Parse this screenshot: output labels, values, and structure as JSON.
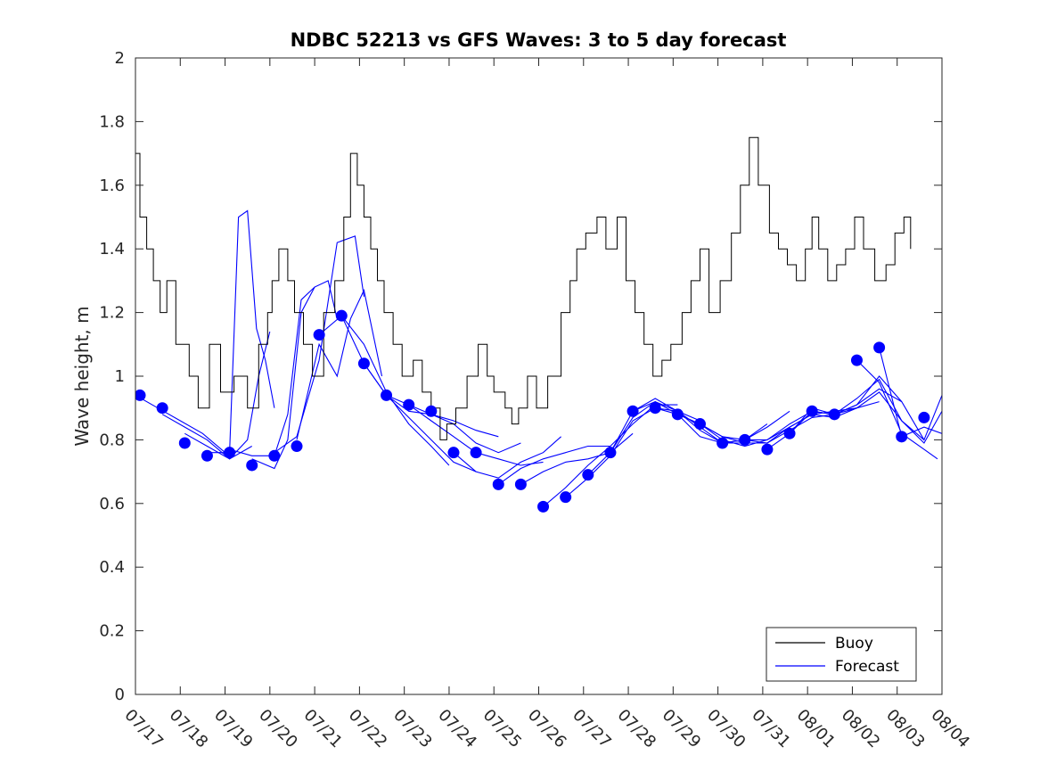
{
  "chart_data": {
    "type": "line",
    "title": "NDBC 52213 vs GFS Waves: 3 to 5 day forecast",
    "xlabel": "",
    "ylabel": "Wave height, m",
    "ylim": [
      0,
      2
    ],
    "yticks": [
      0,
      0.2,
      0.4,
      0.6,
      0.8,
      1,
      1.2,
      1.4,
      1.6,
      1.8,
      2
    ],
    "ytick_labels": [
      "0",
      "0.2",
      "0.4",
      "0.6",
      "0.8",
      "1",
      "1.2",
      "1.4",
      "1.6",
      "1.8",
      "2"
    ],
    "x_unit": "days since 07/17 00:00",
    "xlim": [
      0,
      18
    ],
    "xtick_labels": [
      "07/17",
      "07/18",
      "07/19",
      "07/20",
      "07/21",
      "07/22",
      "07/23",
      "07/24",
      "07/25",
      "07/26",
      "07/27",
      "07/28",
      "07/29",
      "07/30",
      "07/31",
      "08/01",
      "08/02",
      "08/03",
      "08/04"
    ],
    "grid": false,
    "legend": {
      "position": "bottom-right",
      "entries": [
        "Buoy",
        "Forecast"
      ]
    },
    "colors": {
      "buoy": "#000000",
      "forecast": "#0000ff",
      "axis": "#262626"
    },
    "series": [
      {
        "name": "Buoy",
        "step": true,
        "x": [
          0.0,
          0.1,
          0.25,
          0.4,
          0.55,
          0.7,
          0.9,
          1.2,
          1.4,
          1.65,
          1.9,
          2.2,
          2.5,
          2.75,
          2.95,
          3.05,
          3.2,
          3.4,
          3.55,
          3.75,
          3.95,
          4.2,
          4.45,
          4.65,
          4.8,
          4.95,
          5.1,
          5.25,
          5.4,
          5.55,
          5.75,
          5.95,
          6.2,
          6.4,
          6.6,
          6.8,
          6.95,
          7.15,
          7.4,
          7.65,
          7.85,
          8.0,
          8.25,
          8.4,
          8.55,
          8.75,
          8.95,
          9.2,
          9.5,
          9.7,
          9.85,
          10.05,
          10.3,
          10.5,
          10.75,
          10.95,
          11.15,
          11.35,
          11.55,
          11.75,
          11.95,
          12.2,
          12.4,
          12.6,
          12.8,
          13.05,
          13.3,
          13.5,
          13.7,
          13.9,
          14.15,
          14.35,
          14.55,
          14.75,
          14.95,
          15.1,
          15.25,
          15.45,
          15.65,
          15.85,
          16.05,
          16.25,
          16.5,
          16.75,
          16.95,
          17.15,
          17.3
        ],
        "y": [
          1.7,
          1.5,
          1.4,
          1.3,
          1.2,
          1.3,
          1.1,
          1.0,
          0.9,
          1.1,
          0.95,
          1.0,
          0.9,
          1.1,
          1.2,
          1.3,
          1.4,
          1.3,
          1.2,
          1.1,
          1.0,
          1.2,
          1.3,
          1.5,
          1.7,
          1.6,
          1.5,
          1.4,
          1.3,
          1.2,
          1.1,
          1.0,
          1.05,
          0.95,
          0.9,
          0.8,
          0.85,
          0.9,
          1.0,
          1.1,
          1.0,
          0.95,
          0.9,
          0.85,
          0.9,
          1.0,
          0.9,
          1.0,
          1.2,
          1.3,
          1.4,
          1.45,
          1.5,
          1.4,
          1.5,
          1.3,
          1.2,
          1.1,
          1.0,
          1.05,
          1.1,
          1.2,
          1.3,
          1.4,
          1.2,
          1.3,
          1.45,
          1.6,
          1.75,
          1.6,
          1.45,
          1.4,
          1.35,
          1.3,
          1.4,
          1.5,
          1.4,
          1.3,
          1.35,
          1.4,
          1.5,
          1.4,
          1.3,
          1.35,
          1.45,
          1.5,
          1.4
        ]
      },
      {
        "name": "Forecast",
        "forecast_runs": [
          {
            "x": [
              0.0,
              0.5,
              1.0,
              1.5,
              2.0
            ],
            "y": [
              0.94,
              0.9,
              0.86,
              0.82,
              0.76
            ]
          },
          {
            "x": [
              0.6,
              1.1,
              1.6,
              2.1,
              2.6
            ],
            "y": [
              0.88,
              0.84,
              0.8,
              0.74,
              0.78
            ]
          },
          {
            "x": [
              1.1,
              1.6,
              2.1,
              2.5,
              2.75,
              3.0
            ],
            "y": [
              0.82,
              0.78,
              0.74,
              0.8,
              1.0,
              1.14
            ]
          },
          {
            "x": [
              1.6,
              2.1,
              2.3,
              2.5,
              2.7,
              2.9,
              3.1
            ],
            "y": [
              0.76,
              0.76,
              1.5,
              1.52,
              1.15,
              1.05,
              0.9
            ]
          },
          {
            "x": [
              2.1,
              2.6,
              3.1,
              3.4,
              3.7,
              4.0
            ],
            "y": [
              0.77,
              0.75,
              0.75,
              0.88,
              1.24,
              1.28
            ]
          },
          {
            "x": [
              2.6,
              3.1,
              3.4,
              3.7,
              4.0,
              4.3,
              4.5
            ],
            "y": [
              0.74,
              0.71,
              0.8,
              1.2,
              1.28,
              1.3,
              1.18
            ]
          },
          {
            "x": [
              3.1,
              3.6,
              4.1,
              4.5,
              4.9,
              5.1
            ],
            "y": [
              0.76,
              0.81,
              1.05,
              1.42,
              1.44,
              1.25
            ]
          },
          {
            "x": [
              3.6,
              4.1,
              4.5,
              4.8,
              5.1,
              5.5
            ],
            "y": [
              0.8,
              1.1,
              1.0,
              1.18,
              1.27,
              1.0
            ]
          },
          {
            "x": [
              4.1,
              4.6,
              5.1,
              5.6,
              6.1,
              6.6,
              7.0
            ],
            "y": [
              1.13,
              1.19,
              1.1,
              0.95,
              0.85,
              0.78,
              0.72
            ]
          },
          {
            "x": [
              4.6,
              5.1,
              5.6,
              6.1,
              6.6,
              7.1,
              7.6
            ],
            "y": [
              1.19,
              1.04,
              0.94,
              0.87,
              0.8,
              0.73,
              0.7
            ]
          },
          {
            "x": [
              5.1,
              5.6,
              6.1,
              6.6,
              7.1,
              7.6,
              8.1
            ],
            "y": [
              1.04,
              0.94,
              0.89,
              0.88,
              0.86,
              0.83,
              0.81
            ]
          },
          {
            "x": [
              5.6,
              6.1,
              6.6,
              7.1,
              7.6,
              8.1,
              8.6
            ],
            "y": [
              0.94,
              0.91,
              0.88,
              0.85,
              0.79,
              0.76,
              0.79
            ]
          },
          {
            "x": [
              6.1,
              6.6,
              7.1,
              7.6,
              8.1,
              8.6,
              9.1
            ],
            "y": [
              0.91,
              0.86,
              0.81,
              0.76,
              0.74,
              0.72,
              0.73
            ]
          },
          {
            "x": [
              7.1,
              7.6,
              8.1,
              8.6,
              9.1,
              9.5
            ],
            "y": [
              0.76,
              0.7,
              0.68,
              0.73,
              0.76,
              0.81
            ]
          },
          {
            "x": [
              8.1,
              8.6,
              9.1,
              9.6,
              10.1,
              10.6
            ],
            "y": [
              0.66,
              0.71,
              0.74,
              0.76,
              0.78,
              0.78
            ]
          },
          {
            "x": [
              8.6,
              9.1,
              9.6,
              10.1,
              10.6,
              11.1
            ],
            "y": [
              0.66,
              0.7,
              0.73,
              0.74,
              0.76,
              0.82
            ]
          },
          {
            "x": [
              9.1,
              9.6,
              10.1,
              10.6,
              11.1,
              11.6,
              12.1
            ],
            "y": [
              0.59,
              0.65,
              0.72,
              0.78,
              0.85,
              0.91,
              0.91
            ]
          },
          {
            "x": [
              9.6,
              10.1,
              10.6,
              11.1,
              11.6,
              12.1,
              12.6
            ],
            "y": [
              0.62,
              0.68,
              0.75,
              0.86,
              0.9,
              0.89,
              0.86
            ]
          },
          {
            "x": [
              10.1,
              10.6,
              11.1,
              11.6,
              12.1,
              12.6,
              13.1
            ],
            "y": [
              0.69,
              0.76,
              0.87,
              0.92,
              0.88,
              0.81,
              0.79
            ]
          },
          {
            "x": [
              10.6,
              11.1,
              11.6,
              12.1,
              12.6,
              13.1,
              13.6
            ],
            "y": [
              0.76,
              0.89,
              0.93,
              0.89,
              0.84,
              0.79,
              0.79
            ]
          },
          {
            "x": [
              11.1,
              11.6,
              12.1,
              12.6,
              13.1,
              13.6,
              14.1
            ],
            "y": [
              0.89,
              0.92,
              0.89,
              0.83,
              0.79,
              0.8,
              0.85
            ]
          },
          {
            "x": [
              11.6,
              12.1,
              12.6,
              13.1,
              13.6,
              14.1,
              14.6
            ],
            "y": [
              0.9,
              0.88,
              0.85,
              0.81,
              0.8,
              0.84,
              0.89
            ]
          },
          {
            "x": [
              12.1,
              12.6,
              13.1,
              13.6,
              14.1,
              14.6,
              15.1
            ],
            "y": [
              0.88,
              0.85,
              0.8,
              0.78,
              0.8,
              0.85,
              0.89
            ]
          },
          {
            "x": [
              12.6,
              13.1,
              13.6,
              14.1,
              14.6,
              15.1,
              15.6
            ],
            "y": [
              0.85,
              0.81,
              0.79,
              0.79,
              0.83,
              0.87,
              0.88
            ]
          },
          {
            "x": [
              13.1,
              13.6,
              14.1,
              14.6,
              15.1,
              15.6,
              16.1
            ],
            "y": [
              0.79,
              0.8,
              0.8,
              0.84,
              0.88,
              0.89,
              0.9
            ]
          },
          {
            "x": [
              13.6,
              14.1,
              14.6,
              15.1,
              15.6,
              16.1,
              16.6
            ],
            "y": [
              0.8,
              0.79,
              0.84,
              0.88,
              0.87,
              0.9,
              0.92
            ]
          },
          {
            "x": [
              14.1,
              14.6,
              15.1,
              15.6,
              16.1,
              16.6,
              17.1
            ],
            "y": [
              0.77,
              0.82,
              0.9,
              0.88,
              0.91,
              0.96,
              0.92
            ]
          },
          {
            "x": [
              14.6,
              15.1,
              15.6,
              16.1,
              16.6,
              17.1,
              17.6
            ],
            "y": [
              0.82,
              0.89,
              0.88,
              0.93,
              0.99,
              0.86,
              0.8
            ]
          },
          {
            "x": [
              15.1,
              15.6,
              16.1,
              16.6,
              17.1,
              17.6,
              18.0
            ],
            "y": [
              0.89,
              0.88,
              0.91,
              1.0,
              0.92,
              0.8,
              0.94
            ]
          },
          {
            "x": [
              15.6,
              16.1,
              16.6,
              17.1,
              17.6,
              18.0
            ],
            "y": [
              0.88,
              0.9,
              0.95,
              0.86,
              0.79,
              0.89
            ]
          },
          {
            "x": [
              16.1,
              16.6,
              17.1,
              17.6,
              17.9
            ],
            "y": [
              1.05,
              0.98,
              0.82,
              0.77,
              0.74
            ]
          },
          {
            "x": [
              16.6,
              17.1,
              17.6,
              18.0
            ],
            "y": [
              1.09,
              0.81,
              0.84,
              0.82
            ]
          }
        ],
        "points": {
          "x": [
            0.1,
            0.6,
            1.1,
            1.6,
            2.1,
            2.6,
            3.1,
            3.6,
            4.1,
            4.6,
            5.1,
            5.6,
            6.1,
            6.6,
            7.1,
            7.6,
            8.1,
            8.6,
            9.1,
            9.6,
            10.1,
            10.6,
            11.1,
            11.6,
            12.1,
            12.6,
            13.1,
            13.6,
            14.1,
            14.6,
            15.1,
            15.6,
            16.1,
            16.6,
            17.1,
            17.6
          ],
          "y": [
            0.94,
            0.9,
            0.79,
            0.75,
            0.76,
            0.72,
            0.75,
            0.78,
            1.13,
            1.19,
            1.04,
            0.94,
            0.91,
            0.89,
            0.76,
            0.76,
            0.66,
            0.66,
            0.59,
            0.62,
            0.69,
            0.76,
            0.89,
            0.9,
            0.88,
            0.85,
            0.79,
            0.8,
            0.77,
            0.82,
            0.89,
            0.88,
            1.05,
            1.09,
            0.81,
            0.87
          ]
        }
      }
    ]
  }
}
